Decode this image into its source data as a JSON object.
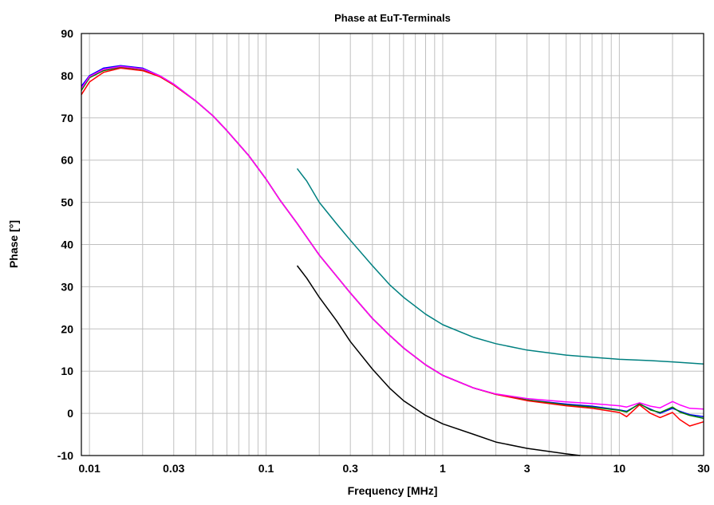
{
  "chart_data": {
    "type": "line",
    "title": "Phase at EuT-Terminals",
    "xlabel": "Frequency [MHz]",
    "ylabel": "Phase [°]",
    "x_scale": "log",
    "xlim": [
      0.009,
      30
    ],
    "ylim": [
      -10,
      90
    ],
    "grid": true,
    "x_ticks": [
      {
        "value": 0.01,
        "label": "0.01"
      },
      {
        "value": 0.03,
        "label": "0.03"
      },
      {
        "value": 0.1,
        "label": "0.1"
      },
      {
        "value": 0.3,
        "label": "0.3"
      },
      {
        "value": 1,
        "label": "1"
      },
      {
        "value": 3,
        "label": "3"
      },
      {
        "value": 10,
        "label": "10"
      },
      {
        "value": 30,
        "label": "30"
      }
    ],
    "y_ticks": [
      {
        "value": -10,
        "label": "-10"
      },
      {
        "value": 0,
        "label": "0"
      },
      {
        "value": 10,
        "label": "10"
      },
      {
        "value": 20,
        "label": "20"
      },
      {
        "value": 30,
        "label": "30"
      },
      {
        "value": 40,
        "label": "40"
      },
      {
        "value": 50,
        "label": "50"
      },
      {
        "value": 60,
        "label": "60"
      },
      {
        "value": 70,
        "label": "70"
      },
      {
        "value": 80,
        "label": "80"
      },
      {
        "value": 90,
        "label": "90"
      }
    ],
    "series": [
      {
        "color": "#0000ff",
        "points": [
          [
            0.009,
            77.5
          ],
          [
            0.01,
            80
          ],
          [
            0.012,
            81.8
          ],
          [
            0.015,
            82.4
          ],
          [
            0.02,
            81.8
          ],
          [
            0.025,
            80
          ],
          [
            0.03,
            78
          ],
          [
            0.04,
            74
          ],
          [
            0.05,
            70.5
          ],
          [
            0.06,
            67
          ],
          [
            0.08,
            61
          ],
          [
            0.1,
            55.5
          ],
          [
            0.12,
            50.5
          ],
          [
            0.15,
            45
          ],
          [
            0.2,
            37.5
          ],
          [
            0.3,
            28.5
          ],
          [
            0.4,
            22.5
          ],
          [
            0.5,
            18.5
          ],
          [
            0.6,
            15.5
          ],
          [
            0.8,
            11.5
          ],
          [
            1,
            9
          ],
          [
            1.5,
            6
          ],
          [
            2,
            4.5
          ],
          [
            3,
            3.2
          ],
          [
            5,
            2.2
          ],
          [
            7,
            1.7
          ],
          [
            10,
            0.8
          ],
          [
            11,
            0.5
          ],
          [
            13,
            2.2
          ],
          [
            15,
            1
          ],
          [
            17,
            0
          ],
          [
            20,
            1.2
          ],
          [
            22,
            0.5
          ],
          [
            25,
            -0.3
          ],
          [
            30,
            -0.8
          ]
        ]
      },
      {
        "color": "#008000",
        "points": [
          [
            0.009,
            76.5
          ],
          [
            0.01,
            79.5
          ],
          [
            0.012,
            81.2
          ],
          [
            0.015,
            82
          ],
          [
            0.02,
            81.5
          ],
          [
            0.025,
            79.8
          ],
          [
            0.03,
            77.8
          ],
          [
            0.04,
            74
          ],
          [
            0.05,
            70.5
          ],
          [
            0.06,
            67
          ],
          [
            0.08,
            61
          ],
          [
            0.1,
            55.5
          ],
          [
            0.12,
            50.5
          ],
          [
            0.15,
            45
          ],
          [
            0.2,
            37.5
          ],
          [
            0.3,
            28.5
          ],
          [
            0.4,
            22.5
          ],
          [
            0.5,
            18.5
          ],
          [
            0.6,
            15.5
          ],
          [
            0.8,
            11.5
          ],
          [
            1,
            9
          ],
          [
            1.5,
            6
          ],
          [
            2,
            4.5
          ],
          [
            3,
            3.2
          ],
          [
            5,
            2
          ],
          [
            7,
            1.5
          ],
          [
            10,
            0.7
          ],
          [
            11,
            0.3
          ],
          [
            13,
            2.3
          ],
          [
            15,
            0.8
          ],
          [
            17,
            0.2
          ],
          [
            20,
            1.5
          ],
          [
            22,
            0.3
          ],
          [
            25,
            -0.5
          ],
          [
            30,
            -1.2
          ]
        ]
      },
      {
        "color": "#ff0000",
        "points": [
          [
            0.009,
            75.5
          ],
          [
            0.01,
            78.5
          ],
          [
            0.012,
            80.8
          ],
          [
            0.015,
            81.8
          ],
          [
            0.02,
            81.2
          ],
          [
            0.025,
            79.8
          ],
          [
            0.03,
            77.8
          ],
          [
            0.04,
            74
          ],
          [
            0.05,
            70.5
          ],
          [
            0.06,
            67
          ],
          [
            0.08,
            61
          ],
          [
            0.1,
            55.5
          ],
          [
            0.12,
            50.5
          ],
          [
            0.15,
            45
          ],
          [
            0.2,
            37.5
          ],
          [
            0.3,
            28.5
          ],
          [
            0.4,
            22.5
          ],
          [
            0.5,
            18.5
          ],
          [
            0.6,
            15.5
          ],
          [
            0.8,
            11.5
          ],
          [
            1,
            9
          ],
          [
            1.5,
            6
          ],
          [
            2,
            4.5
          ],
          [
            3,
            3
          ],
          [
            5,
            1.8
          ],
          [
            7,
            1.2
          ],
          [
            10,
            0.2
          ],
          [
            11,
            -0.8
          ],
          [
            13,
            2
          ],
          [
            15,
            0
          ],
          [
            17,
            -1
          ],
          [
            20,
            0.2
          ],
          [
            22,
            -1.5
          ],
          [
            25,
            -3
          ],
          [
            30,
            -2
          ]
        ]
      },
      {
        "color": "#ff00ff",
        "points": [
          [
            0.009,
            77
          ],
          [
            0.01,
            79.8
          ],
          [
            0.012,
            81.5
          ],
          [
            0.015,
            82.2
          ],
          [
            0.02,
            81.6
          ],
          [
            0.025,
            80
          ],
          [
            0.03,
            78
          ],
          [
            0.04,
            74
          ],
          [
            0.05,
            70.5
          ],
          [
            0.06,
            67
          ],
          [
            0.08,
            61
          ],
          [
            0.1,
            55.5
          ],
          [
            0.12,
            50.5
          ],
          [
            0.15,
            45
          ],
          [
            0.2,
            37.5
          ],
          [
            0.3,
            28.5
          ],
          [
            0.4,
            22.5
          ],
          [
            0.5,
            18.5
          ],
          [
            0.6,
            15.5
          ],
          [
            0.8,
            11.5
          ],
          [
            1,
            9
          ],
          [
            1.5,
            6
          ],
          [
            2,
            4.6
          ],
          [
            3,
            3.5
          ],
          [
            5,
            2.7
          ],
          [
            7,
            2.3
          ],
          [
            10,
            1.8
          ],
          [
            11,
            1.5
          ],
          [
            13,
            2.5
          ],
          [
            15,
            1.7
          ],
          [
            17,
            1.3
          ],
          [
            20,
            2.8
          ],
          [
            22,
            2
          ],
          [
            25,
            1.2
          ],
          [
            30,
            1
          ]
        ]
      },
      {
        "color": "#008080",
        "points": [
          [
            0.15,
            58
          ],
          [
            0.17,
            55
          ],
          [
            0.2,
            50
          ],
          [
            0.25,
            45
          ],
          [
            0.3,
            41
          ],
          [
            0.4,
            35
          ],
          [
            0.5,
            30.5
          ],
          [
            0.6,
            27.5
          ],
          [
            0.8,
            23.5
          ],
          [
            1,
            21
          ],
          [
            1.5,
            18
          ],
          [
            2,
            16.5
          ],
          [
            3,
            15
          ],
          [
            5,
            13.8
          ],
          [
            7,
            13.3
          ],
          [
            10,
            12.8
          ],
          [
            15,
            12.5
          ],
          [
            20,
            12.2
          ],
          [
            30,
            11.7
          ]
        ]
      },
      {
        "color": "#000000",
        "points": [
          [
            0.15,
            35
          ],
          [
            0.17,
            32
          ],
          [
            0.2,
            27.5
          ],
          [
            0.25,
            22
          ],
          [
            0.3,
            17
          ],
          [
            0.4,
            10.5
          ],
          [
            0.5,
            6
          ],
          [
            0.6,
            3
          ],
          [
            0.8,
            -0.5
          ],
          [
            1,
            -2.5
          ],
          [
            1.5,
            -5
          ],
          [
            2,
            -6.8
          ],
          [
            3,
            -8.3
          ],
          [
            5,
            -9.6
          ],
          [
            6,
            -10
          ]
        ]
      }
    ]
  }
}
